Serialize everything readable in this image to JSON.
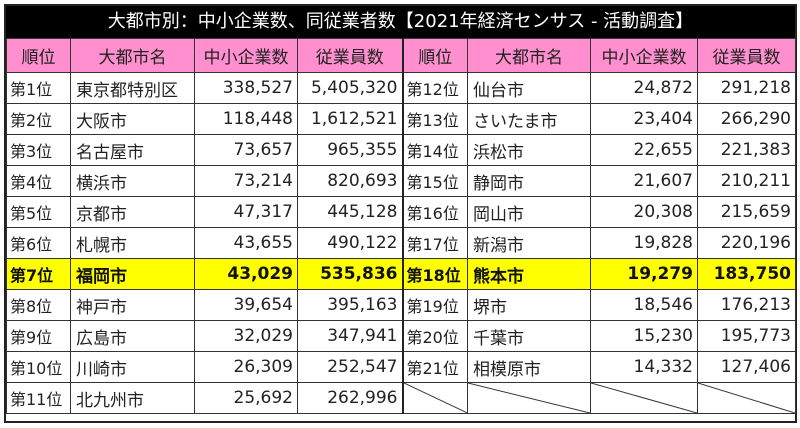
{
  "title": "大都市別：中小企業数、同従業者数【2021年経済センサス - 活動調査】",
  "headers": {
    "rank": "順位",
    "city": "大都市名",
    "sme_count": "中小企業数",
    "employees": "従業員数"
  },
  "colors": {
    "title_bg": "#000000",
    "header_bg": "#ff8fcf",
    "highlight_bg": "#ffff00"
  },
  "left": [
    {
      "rank": "第1位",
      "city": "東京都特別区",
      "sme": "338,527",
      "emp": "5,405,320"
    },
    {
      "rank": "第2位",
      "city": "大阪市",
      "sme": "118,448",
      "emp": "1,612,521"
    },
    {
      "rank": "第3位",
      "city": "名古屋市",
      "sme": "73,657",
      "emp": "965,355"
    },
    {
      "rank": "第4位",
      "city": "横浜市",
      "sme": "73,214",
      "emp": "820,693"
    },
    {
      "rank": "第5位",
      "city": "京都市",
      "sme": "47,317",
      "emp": "445,128"
    },
    {
      "rank": "第6位",
      "city": "札幌市",
      "sme": "43,655",
      "emp": "490,122"
    },
    {
      "rank": "第7位",
      "city": "福岡市",
      "sme": "43,029",
      "emp": "535,836",
      "highlighted": true
    },
    {
      "rank": "第8位",
      "city": "神戸市",
      "sme": "39,654",
      "emp": "395,163"
    },
    {
      "rank": "第9位",
      "city": "広島市",
      "sme": "32,029",
      "emp": "347,941"
    },
    {
      "rank": "第10位",
      "city": "川崎市",
      "sme": "26,309",
      "emp": "252,547"
    },
    {
      "rank": "第11位",
      "city": "北九州市",
      "sme": "25,692",
      "emp": "262,996"
    }
  ],
  "right": [
    {
      "rank": "第12位",
      "city": "仙台市",
      "sme": "24,872",
      "emp": "291,218"
    },
    {
      "rank": "第13位",
      "city": "さいたま市",
      "sme": "23,404",
      "emp": "266,290"
    },
    {
      "rank": "第14位",
      "city": "浜松市",
      "sme": "22,655",
      "emp": "221,383"
    },
    {
      "rank": "第15位",
      "city": "静岡市",
      "sme": "21,607",
      "emp": "210,211"
    },
    {
      "rank": "第16位",
      "city": "岡山市",
      "sme": "20,308",
      "emp": "215,659"
    },
    {
      "rank": "第17位",
      "city": "新潟市",
      "sme": "19,828",
      "emp": "220,196"
    },
    {
      "rank": "第18位",
      "city": "熊本市",
      "sme": "19,279",
      "emp": "183,750"
    },
    {
      "rank": "第19位",
      "city": "堺市",
      "sme": "18,546",
      "emp": "176,213"
    },
    {
      "rank": "第20位",
      "city": "千葉市",
      "sme": "15,230",
      "emp": "195,773"
    },
    {
      "rank": "第21位",
      "city": "相模原市",
      "sme": "14,332",
      "emp": "127,406"
    }
  ]
}
